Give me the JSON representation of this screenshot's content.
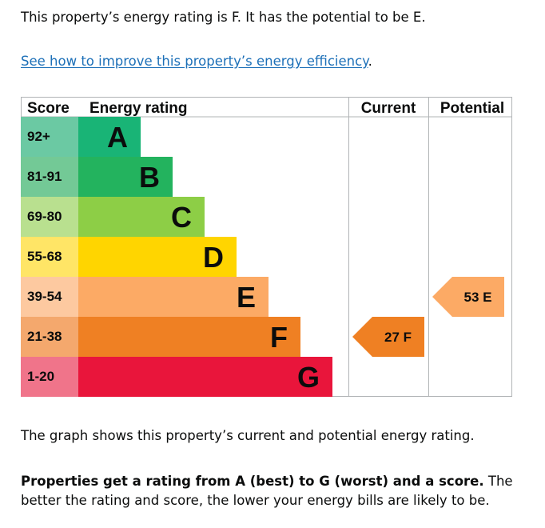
{
  "intro": "This property’s energy rating is F. It has the potential to be E.",
  "link": {
    "text": "See how to improve this property’s energy efficiency",
    "after": "."
  },
  "caption": "The graph shows this property’s current and potential energy rating.",
  "summary": {
    "bold": "Properties get a rating from A (best) to G (worst) and a score.",
    "rest": " The better the rating and score, the lower your energy bills are likely to be."
  },
  "chart_data": {
    "type": "bar",
    "headers": {
      "score": "Score",
      "rating": "Energy rating",
      "current": "Current",
      "potential": "Potential"
    },
    "bands": [
      {
        "letter": "A",
        "range": "92+",
        "min": 92,
        "max": 100,
        "color": "#19b476",
        "score_color": "#6bc9a3"
      },
      {
        "letter": "B",
        "range": "81-91",
        "min": 81,
        "max": 91,
        "color": "#23b35e",
        "score_color": "#73c996"
      },
      {
        "letter": "C",
        "range": "69-80",
        "min": 69,
        "max": 80,
        "color": "#8dce46",
        "score_color": "#b9e08f"
      },
      {
        "letter": "D",
        "range": "55-68",
        "min": 55,
        "max": 68,
        "color": "#ffd500",
        "score_color": "#ffe566"
      },
      {
        "letter": "E",
        "range": "39-54",
        "min": 39,
        "max": 54,
        "color": "#fcaa65",
        "score_color": "#fdc9a0"
      },
      {
        "letter": "F",
        "range": "21-38",
        "min": 21,
        "max": 38,
        "color": "#ef8023",
        "score_color": "#f4a86d"
      },
      {
        "letter": "G",
        "range": "1-20",
        "min": 1,
        "max": 20,
        "color": "#e9153b",
        "score_color": "#f0748a"
      }
    ],
    "current": {
      "score": 27,
      "letter": "F",
      "label": "27  F"
    },
    "potential": {
      "score": 53,
      "letter": "E",
      "label": "53  E"
    }
  }
}
